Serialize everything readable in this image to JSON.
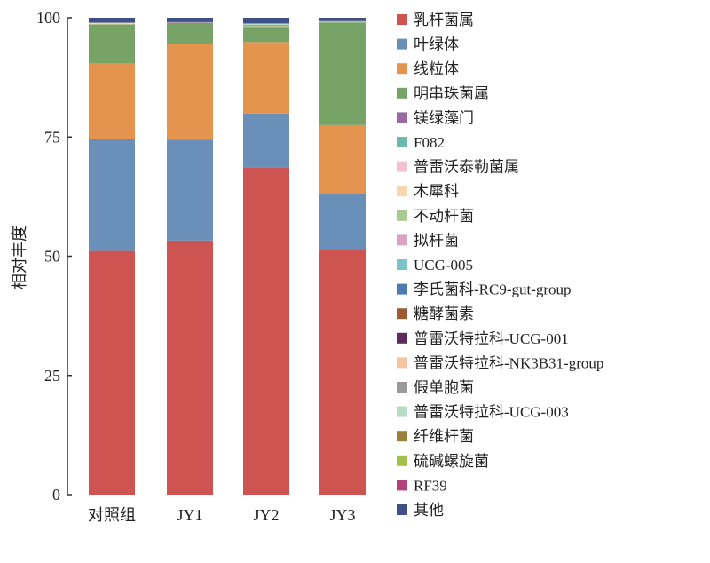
{
  "chart_data": {
    "type": "bar",
    "stacked": true,
    "ylabel": "相对丰度",
    "xlabel": "",
    "ylim": [
      0,
      100
    ],
    "yticks": [
      0,
      25,
      50,
      75,
      100
    ],
    "grid": false,
    "legend_position": "right",
    "categories": [
      "对照组",
      "JY1",
      "JY2",
      "JY3"
    ],
    "series": [
      {
        "name": "乳杆菌属",
        "color": "#cd5451",
        "values": [
          51.1,
          53.3,
          68.6,
          51.3
        ]
      },
      {
        "name": "叶绿体",
        "color": "#6a8fb9",
        "values": [
          23.4,
          21.1,
          11.3,
          11.8
        ]
      },
      {
        "name": "线粒体",
        "color": "#e4944f",
        "values": [
          16.0,
          20.1,
          15.0,
          14.4
        ]
      },
      {
        "name": "明串珠菌属",
        "color": "#77a466",
        "values": [
          8.1,
          4.4,
          3.2,
          21.5
        ]
      },
      {
        "name": "镁绿藻门",
        "color": "#9a6aa3",
        "values": [
          0,
          0.1,
          0,
          0
        ]
      },
      {
        "name": "F082",
        "color": "#6fb8ae",
        "values": [
          0,
          0,
          0,
          0
        ]
      },
      {
        "name": "普雷沃泰勒菌属",
        "color": "#f3c1cf",
        "values": [
          0,
          0,
          0,
          0
        ]
      },
      {
        "name": "木犀科",
        "color": "#f7d6b0",
        "values": [
          0.3,
          0,
          0,
          0
        ]
      },
      {
        "name": "不动杆菌",
        "color": "#a8c98f",
        "values": [
          0,
          0,
          0.2,
          0.2
        ]
      },
      {
        "name": "拟杆菌",
        "color": "#d9a3c4",
        "values": [
          0,
          0,
          0,
          0
        ]
      },
      {
        "name": "UCG-005",
        "color": "#7cc3c9",
        "values": [
          0,
          0,
          0,
          0
        ]
      },
      {
        "name": "李氏菌科-RC9-gut-group",
        "color": "#4b7bb0",
        "values": [
          0,
          0,
          0,
          0
        ]
      },
      {
        "name": "糖酵菌素",
        "color": "#9c5b35",
        "values": [
          0,
          0,
          0,
          0
        ]
      },
      {
        "name": "普雷沃特拉科-UCG-001",
        "color": "#5e2b5e",
        "values": [
          0,
          0,
          0,
          0
        ]
      },
      {
        "name": "普雷沃特拉科-NK3B31-group",
        "color": "#f5c4a1",
        "values": [
          0,
          0,
          0,
          0
        ]
      },
      {
        "name": "假单胞菌",
        "color": "#9a9a9a",
        "values": [
          0.1,
          0.1,
          0.2,
          0.1
        ]
      },
      {
        "name": "普雷沃特拉科-UCG-003",
        "color": "#b6dcc4",
        "values": [
          0,
          0,
          0.3,
          0
        ]
      },
      {
        "name": "纤维杆菌",
        "color": "#98803a",
        "values": [
          0,
          0,
          0,
          0
        ]
      },
      {
        "name": "硫碱螺旋菌",
        "color": "#a3bf4c",
        "values": [
          0,
          0,
          0,
          0
        ]
      },
      {
        "name": "RF39",
        "color": "#b2437a",
        "values": [
          0,
          0,
          0,
          0
        ]
      },
      {
        "name": "其他",
        "color": "#3e5088",
        "values": [
          1.0,
          0.9,
          1.2,
          0.7
        ]
      }
    ]
  }
}
